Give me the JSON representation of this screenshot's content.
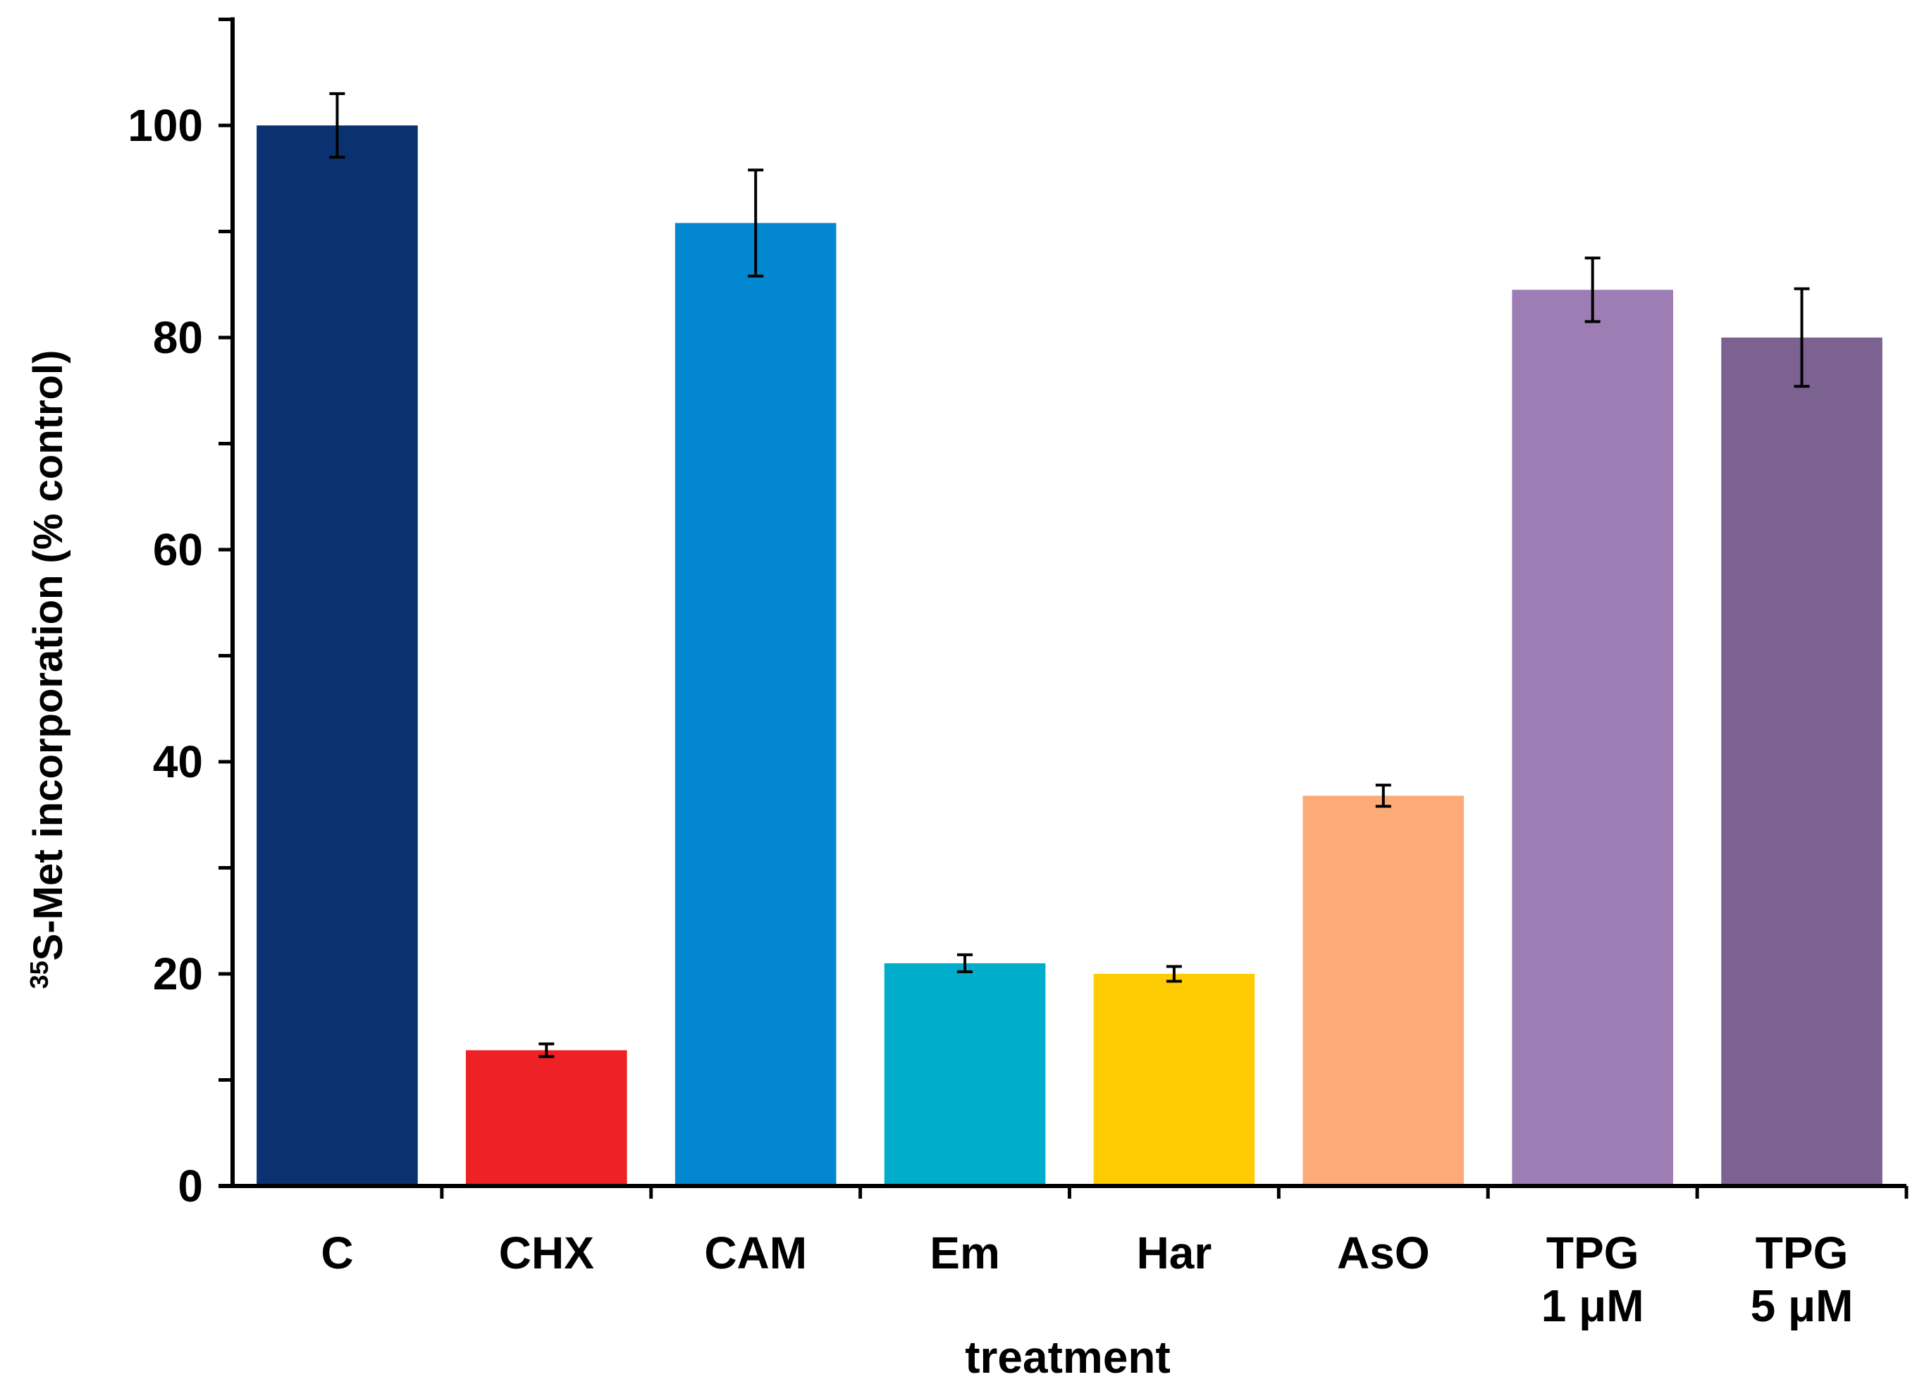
{
  "chart_data": {
    "type": "bar",
    "title": "",
    "xlabel": "treatment",
    "ylabel_sup": "35",
    "ylabel_main": "S-Met incorporation (% control)",
    "ylim": [
      0,
      110
    ],
    "yticks": [
      "0",
      "20",
      "40",
      "60",
      "80",
      "100"
    ],
    "ytick_values": [
      0,
      20,
      40,
      60,
      80,
      100
    ],
    "minor_tick_step": 10,
    "grid": false,
    "legend": "none",
    "categories": [
      [
        "C"
      ],
      [
        "CHX"
      ],
      [
        "CAM"
      ],
      [
        "Em"
      ],
      [
        "Har"
      ],
      [
        "AsO"
      ],
      [
        "TPG",
        "1 μM"
      ],
      [
        "TPG",
        "5 μM"
      ]
    ],
    "values": [
      100,
      12.8,
      90.8,
      21,
      20,
      36.8,
      84.5,
      80
    ],
    "errors": [
      3,
      0.6,
      5,
      0.8,
      0.7,
      1,
      3,
      4.6
    ],
    "colors": [
      "#0a3270",
      "#ee2124",
      "#0287d0",
      "#00adcb",
      "#ffcb03",
      "#fcab78",
      "#9d7db4",
      "#7b6290"
    ]
  }
}
